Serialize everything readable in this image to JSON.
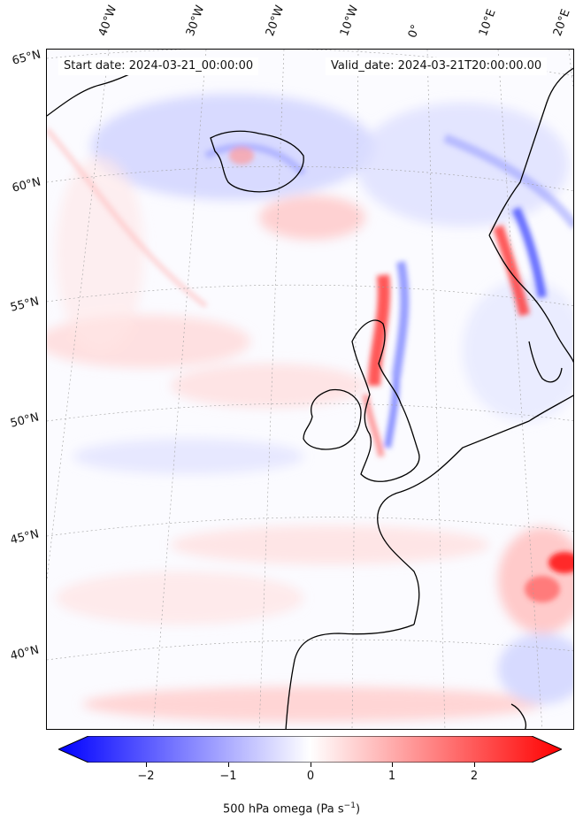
{
  "map": {
    "header_start": "Start date: 2024-03-21_00:00:00",
    "header_valid": "Valid_date: 2024-03-21T20:00:00.00",
    "lon_labels": [
      "40°W",
      "30°W",
      "20°W",
      "10°W",
      "0°",
      "10°E",
      "20°E"
    ],
    "lat_labels": [
      "65°N",
      "60°N",
      "55°N",
      "50°N",
      "45°N",
      "40°N"
    ],
    "field": "500 hPa omega",
    "colormap": [
      "#0000ff",
      "#ffffff",
      "#ff0000"
    ]
  },
  "colorbar": {
    "title_main": "500 hPa omega (Pa s",
    "title_sup": "−1",
    "title_end": ")",
    "range": [
      -2.7,
      2.7
    ],
    "ticks": [
      "−2",
      "−1",
      "0",
      "1",
      "2"
    ],
    "tick_values": [
      -2,
      -1,
      0,
      1,
      2
    ],
    "extend": "both"
  }
}
